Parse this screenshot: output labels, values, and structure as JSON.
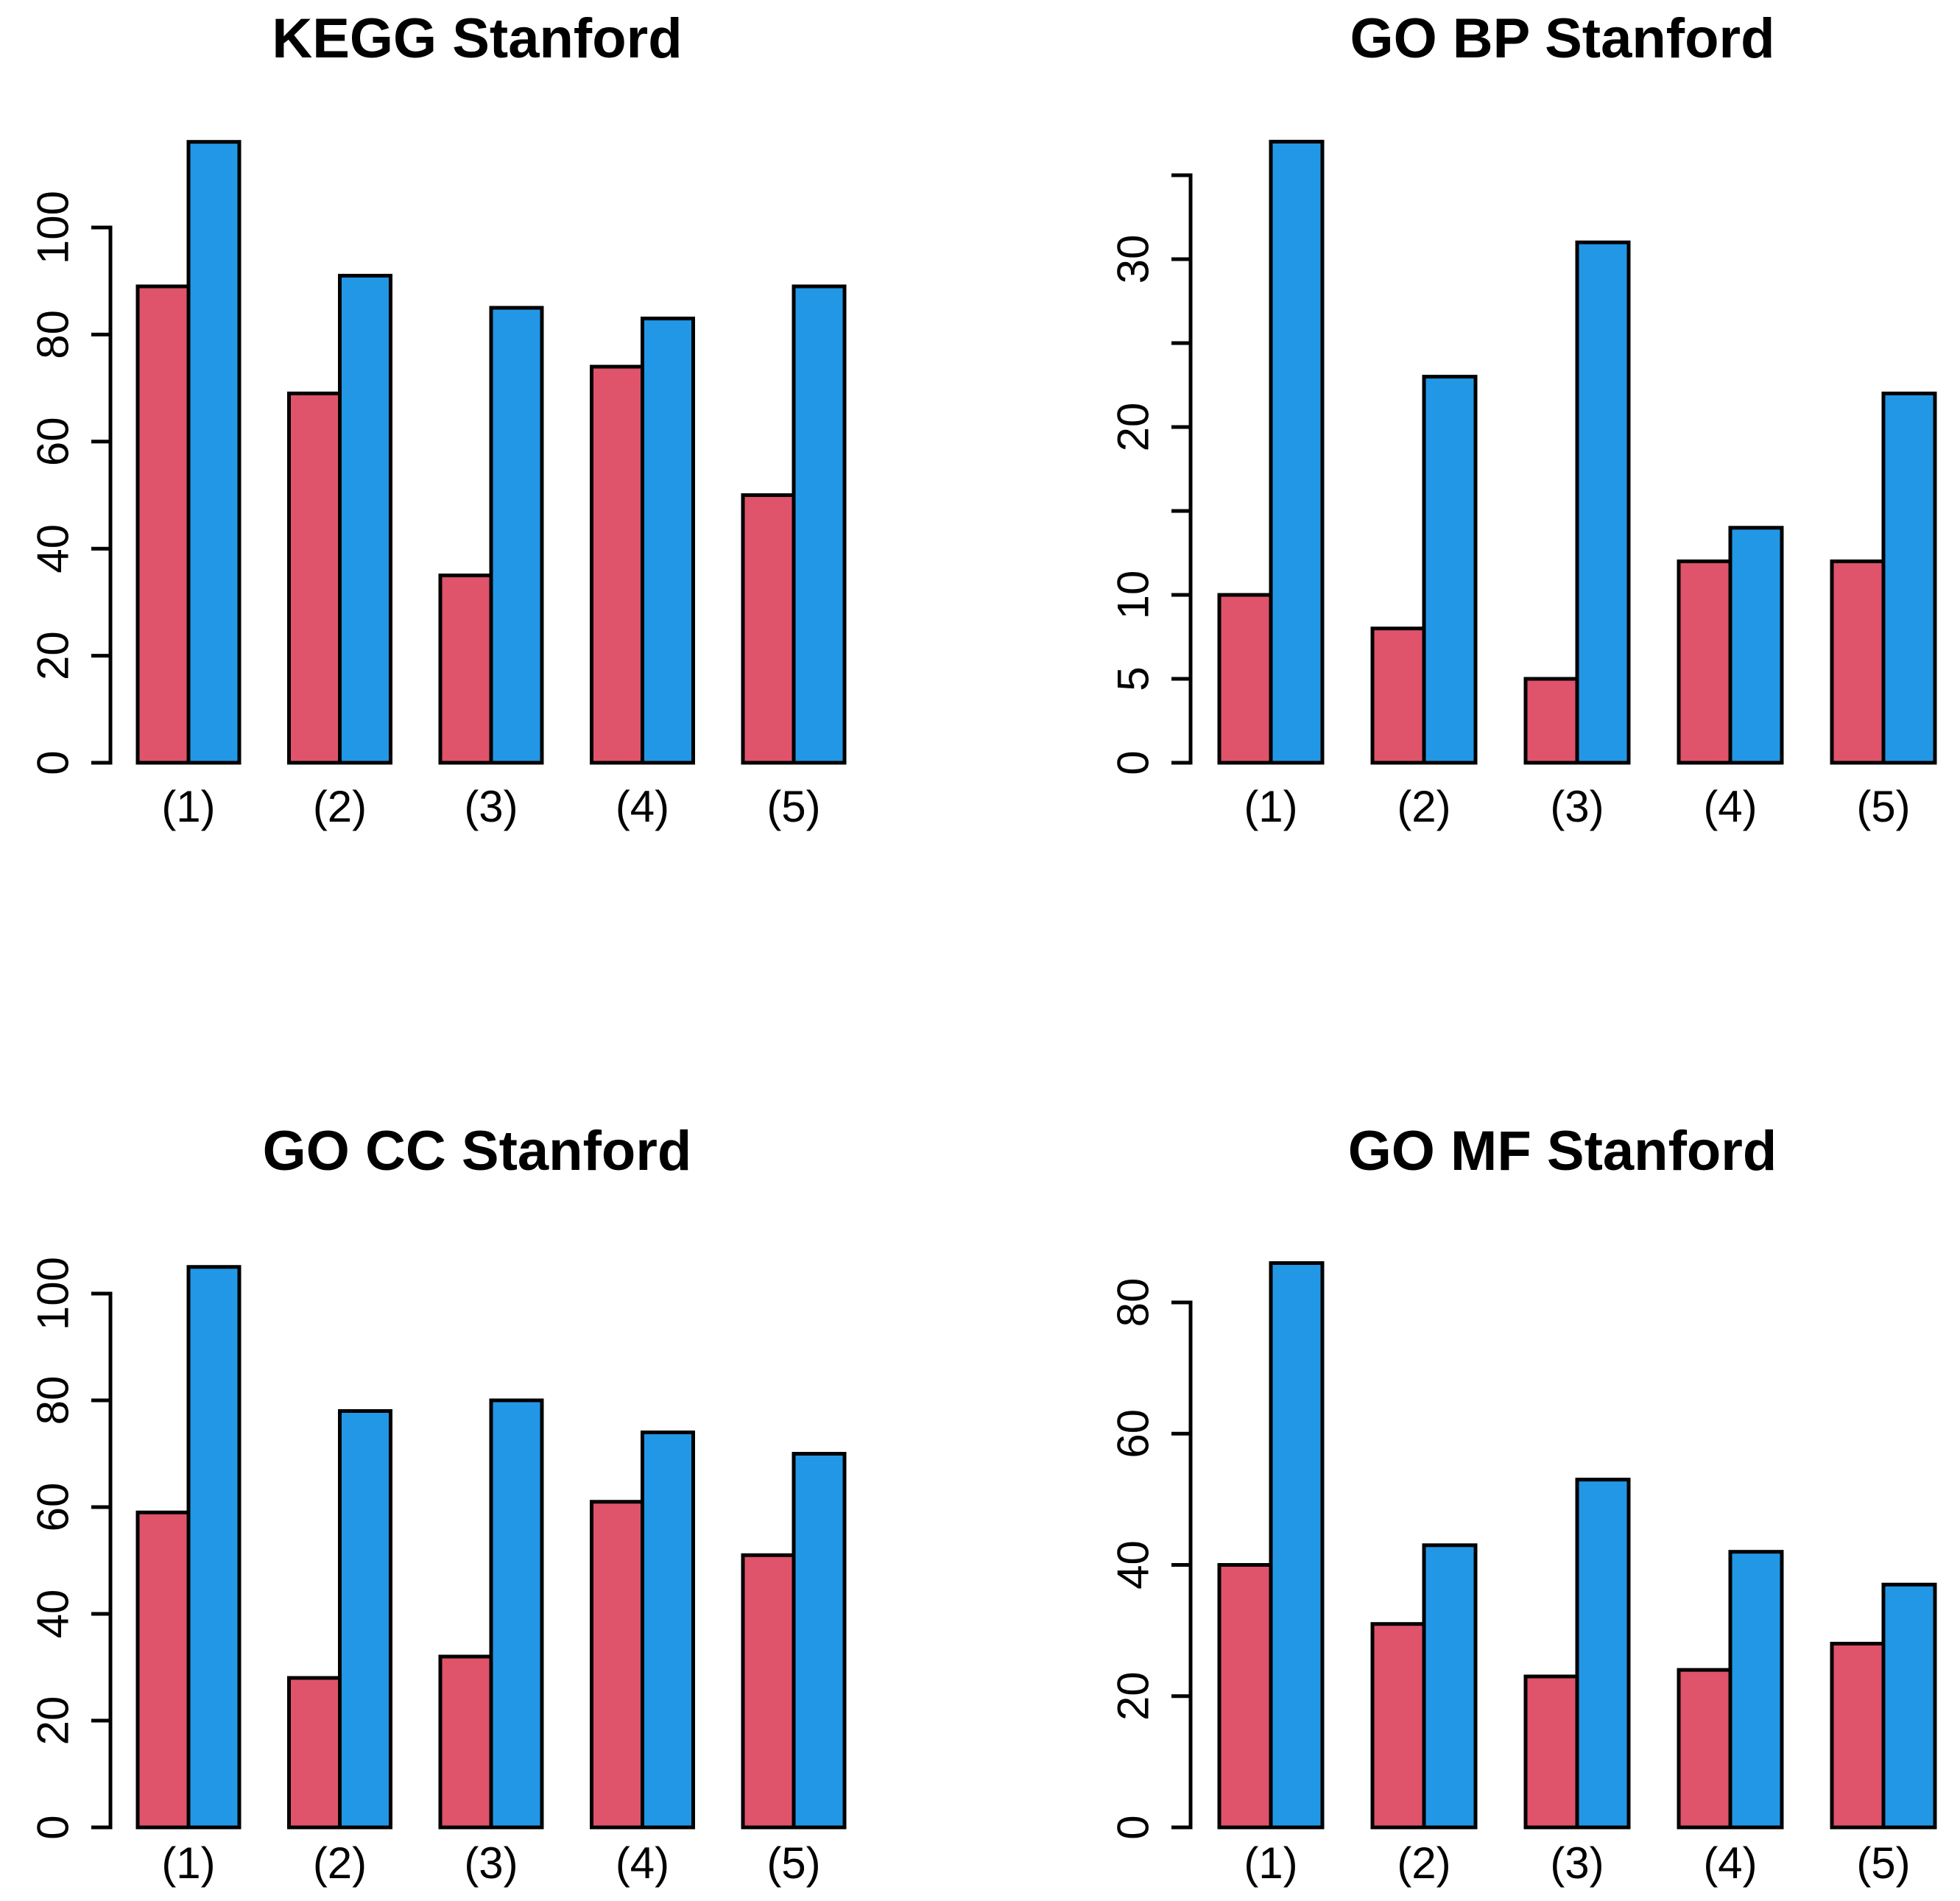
{
  "figure": {
    "background": "#ffffff",
    "text_color": "#000000",
    "bar_border_color": "#000000",
    "series_colors": {
      "series1": "#DF536B",
      "series2": "#2297E6"
    }
  },
  "chart_data": [
    {
      "type": "bar",
      "title": "KEGG Stanford",
      "categories": [
        "(1)",
        "(2)",
        "(3)",
        "(4)",
        "(5)"
      ],
      "series": [
        {
          "name": "series1",
          "color": "#DF536B",
          "values": [
            89,
            69,
            35,
            74,
            50
          ]
        },
        {
          "name": "series2",
          "color": "#2297E6",
          "values": [
            116,
            91,
            85,
            83,
            89
          ]
        }
      ],
      "yticks": [
        {
          "value": 0,
          "label": "0"
        },
        {
          "value": 20,
          "label": "20"
        },
        {
          "value": 40,
          "label": "40"
        },
        {
          "value": 60,
          "label": "60"
        },
        {
          "value": 80,
          "label": "80"
        },
        {
          "value": 100,
          "label": "100"
        }
      ],
      "axis_top": 100,
      "ylim": [
        0,
        116
      ],
      "grid": false,
      "legend": "none"
    },
    {
      "type": "bar",
      "title": "GO BP Stanford",
      "categories": [
        "(1)",
        "(2)",
        "(3)",
        "(4)",
        "(5)"
      ],
      "series": [
        {
          "name": "series1",
          "color": "#DF536B",
          "values": [
            10,
            8,
            5,
            12,
            12
          ]
        },
        {
          "name": "series2",
          "color": "#2297E6",
          "values": [
            37,
            23,
            31,
            14,
            22
          ]
        }
      ],
      "yticks": [
        {
          "value": 0,
          "label": "0"
        },
        {
          "value": 5,
          "label": "5"
        },
        {
          "value": 10,
          "label": "10"
        },
        {
          "value": 15,
          "label": ""
        },
        {
          "value": 20,
          "label": "20"
        },
        {
          "value": 25,
          "label": ""
        },
        {
          "value": 30,
          "label": "30"
        },
        {
          "value": 35,
          "label": ""
        }
      ],
      "axis_top": 35,
      "ylim": [
        0,
        37
      ],
      "grid": false,
      "legend": "none"
    },
    {
      "type": "bar",
      "title": "GO CC Stanford",
      "categories": [
        "(1)",
        "(2)",
        "(3)",
        "(4)",
        "(5)"
      ],
      "series": [
        {
          "name": "series1",
          "color": "#DF536B",
          "values": [
            59,
            28,
            32,
            61,
            51
          ]
        },
        {
          "name": "series2",
          "color": "#2297E6",
          "values": [
            105,
            78,
            80,
            74,
            70
          ]
        }
      ],
      "yticks": [
        {
          "value": 0,
          "label": "0"
        },
        {
          "value": 20,
          "label": "20"
        },
        {
          "value": 40,
          "label": "40"
        },
        {
          "value": 60,
          "label": "60"
        },
        {
          "value": 80,
          "label": "80"
        },
        {
          "value": 100,
          "label": "100"
        }
      ],
      "axis_top": 100,
      "ylim": [
        0,
        105
      ],
      "grid": false,
      "legend": "none"
    },
    {
      "type": "bar",
      "title": "GO MF Stanford",
      "categories": [
        "(1)",
        "(2)",
        "(3)",
        "(4)",
        "(5)"
      ],
      "series": [
        {
          "name": "series1",
          "color": "#DF536B",
          "values": [
            40,
            31,
            23,
            24,
            28
          ]
        },
        {
          "name": "series2",
          "color": "#2297E6",
          "values": [
            86,
            43,
            53,
            42,
            37
          ]
        }
      ],
      "yticks": [
        {
          "value": 0,
          "label": "0"
        },
        {
          "value": 20,
          "label": "20"
        },
        {
          "value": 40,
          "label": "40"
        },
        {
          "value": 60,
          "label": "60"
        },
        {
          "value": 80,
          "label": "80"
        }
      ],
      "axis_top": 80,
      "ylim": [
        0,
        86
      ],
      "grid": false,
      "legend": "none"
    }
  ]
}
